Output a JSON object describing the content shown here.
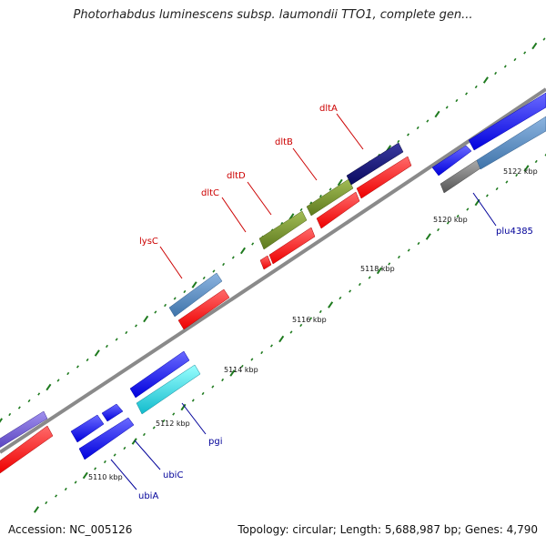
{
  "title": "Photorhabdus luminescens subsp. laumondii TTO1, complete gen...",
  "footer": {
    "accession": "Accession: NC_005126",
    "stats": "Topology: circular; Length: 5,688,987 bp; Genes: 4,790"
  },
  "colors": {
    "backbone": "#8a8a8a",
    "tick": "#1e7a1e",
    "forward_label": "#cc0000",
    "reverse_label": "#000099"
  },
  "scale_labels": [
    "5110 kbp",
    "5112 kbp",
    "5114 kbp",
    "5116 kbp",
    "5118 kbp",
    "5120 kbp",
    "5122 kbp"
  ],
  "gene_labels": {
    "forward": [
      "lysC",
      "dltC",
      "dltD",
      "dltB",
      "dltA"
    ],
    "reverse": [
      "ubiA",
      "ubiC",
      "pgi",
      "plu4385"
    ]
  }
}
